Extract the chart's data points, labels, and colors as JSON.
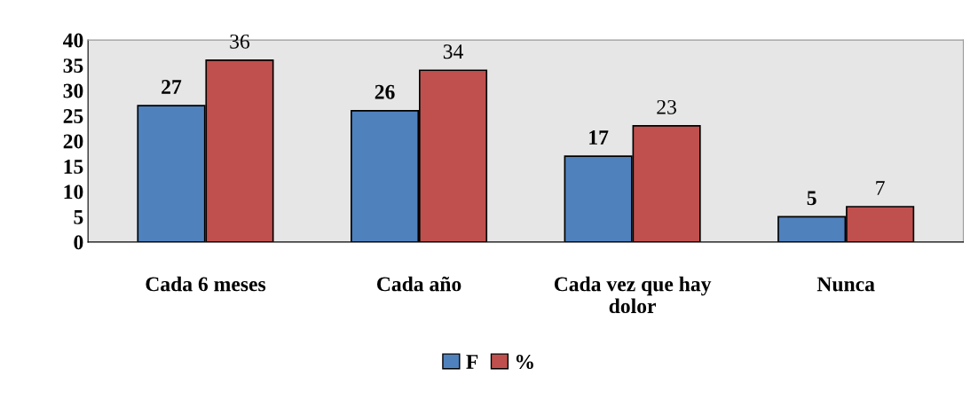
{
  "chart_data": {
    "type": "bar",
    "categories": [
      "Cada 6 meses",
      "Cada año",
      "Cada vez que hay\ndolor",
      "Nunca"
    ],
    "series": [
      {
        "name": "F",
        "color": "#4f81bd",
        "values": [
          27,
          26,
          17,
          5
        ]
      },
      {
        "name": "%",
        "color": "#c0504d",
        "values": [
          36,
          34,
          23,
          7
        ]
      }
    ],
    "ylim": [
      0,
      40
    ],
    "yticks": [
      0,
      5,
      10,
      15,
      20,
      25,
      30,
      35,
      40
    ],
    "data_labels": true,
    "grid": false,
    "legend": "bottom"
  }
}
